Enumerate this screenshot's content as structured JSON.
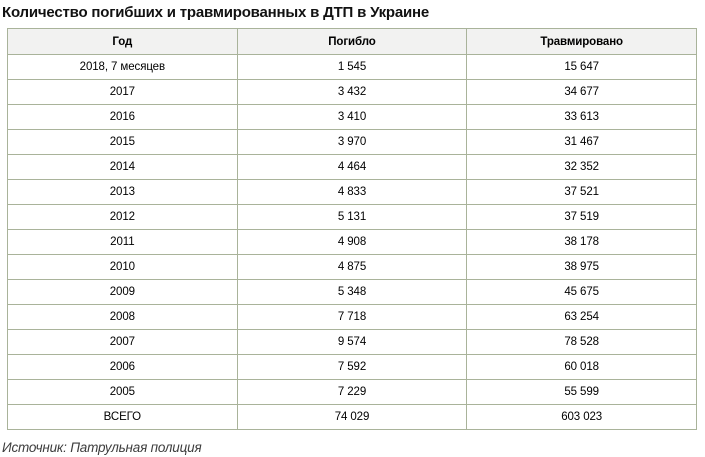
{
  "chart_data": {
    "type": "table",
    "title": "Количество погибших и травмированных в ДТП в Украине",
    "columns": [
      "Год",
      "Погибло",
      "Травмировано"
    ],
    "rows": [
      [
        "2018, 7 месяцев",
        "1 545",
        "15 647"
      ],
      [
        "2017",
        "3 432",
        "34 677"
      ],
      [
        "2016",
        "3 410",
        "33 613"
      ],
      [
        "2015",
        "3 970",
        "31 467"
      ],
      [
        "2014",
        "4 464",
        "32 352"
      ],
      [
        "2013",
        "4 833",
        "37 521"
      ],
      [
        "2012",
        "5 131",
        "37 519"
      ],
      [
        "2011",
        "4 908",
        "38 178"
      ],
      [
        "2010",
        "4 875",
        "38 975"
      ],
      [
        "2009",
        "5 348",
        "45 675"
      ],
      [
        "2008",
        "7 718",
        "63 254"
      ],
      [
        "2007",
        "9 574",
        "78 528"
      ],
      [
        "2006",
        "7 592",
        "60 018"
      ],
      [
        "2005",
        "7 229",
        "55 599"
      ],
      [
        "ВСЕГО",
        "74 029",
        "603 023"
      ]
    ],
    "categories": [
      "2018, 7 месяцев",
      "2017",
      "2016",
      "2015",
      "2014",
      "2013",
      "2012",
      "2011",
      "2010",
      "2009",
      "2008",
      "2007",
      "2006",
      "2005"
    ],
    "series": [
      {
        "name": "Погибло",
        "values": [
          1545,
          3432,
          3410,
          3970,
          4464,
          4833,
          5131,
          4908,
          4875,
          5348,
          7718,
          9574,
          7592,
          7229
        ]
      },
      {
        "name": "Травмировано",
        "values": [
          15647,
          34677,
          33613,
          31467,
          32352,
          37521,
          37519,
          38178,
          38975,
          45675,
          63254,
          78528,
          60018,
          55599
        ]
      }
    ],
    "totals": {
      "label": "ВСЕГО",
      "died": 74029,
      "injured": 603023
    },
    "source": "Источник: Патрульная полиция",
    "colors": {
      "border": "#a9b39a",
      "header_bg": "#f2f2f1",
      "text": "#000000",
      "title_text": "#111111",
      "source_text": "#3d3d3d"
    }
  }
}
